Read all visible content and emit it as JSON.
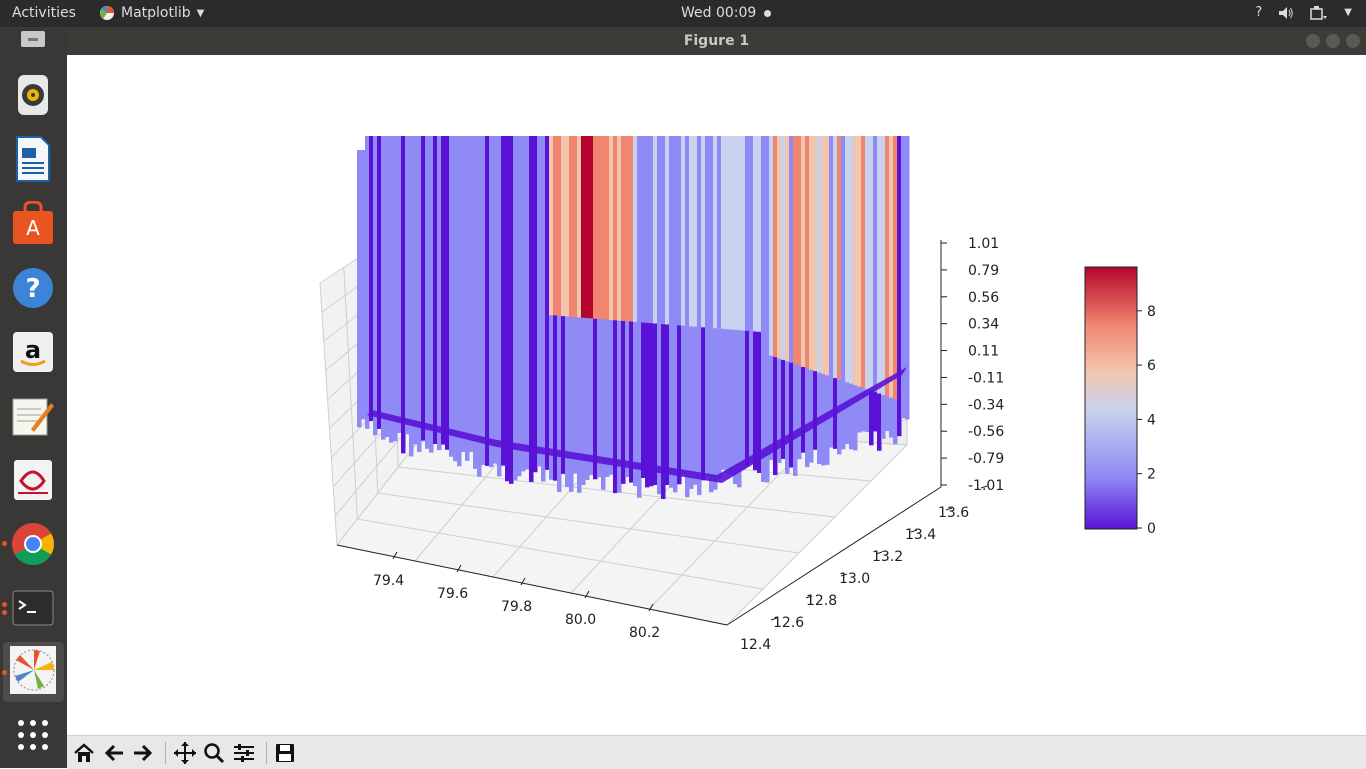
{
  "topbar": {
    "activities": "Activities",
    "app_name": "Matplotlib",
    "clock": "Wed 00:09",
    "help": "?"
  },
  "window": {
    "title": "Figure 1"
  },
  "dock": {
    "items": [
      "trash",
      "speaker",
      "writer",
      "software-center",
      "help",
      "amazon",
      "text-editor",
      "pdf-viewer",
      "chrome",
      "terminal",
      "matplotlib",
      "app-grid"
    ]
  },
  "plot": {
    "z_ticks": [
      "1.01",
      "0.79",
      "0.56",
      "0.34",
      "0.11",
      "-0.11",
      "-0.34",
      "-0.56",
      "-0.79",
      "-1.01"
    ],
    "x_ticks": [
      "79.4",
      "79.6",
      "79.8",
      "80.0",
      "80.2"
    ],
    "y_ticks": [
      "12.4",
      "12.6",
      "12.8",
      "13.0",
      "13.2",
      "13.4",
      "13.6"
    ],
    "colorbar_ticks": [
      "0",
      "2",
      "4",
      "6",
      "8"
    ],
    "colormap": [
      "#5a12d6",
      "#8f8af5",
      "#c8d2ef",
      "#f2c6ae",
      "#f08670",
      "#b5042c"
    ]
  },
  "toolbar": {
    "buttons": [
      "home-icon",
      "back-icon",
      "forward-icon",
      "pan-icon",
      "zoom-icon",
      "configure-icon",
      "save-icon"
    ]
  }
}
